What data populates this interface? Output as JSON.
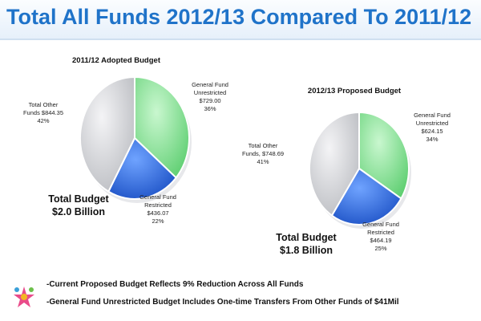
{
  "header": {
    "title": "Total All Funds 2012/13 Compared To 2011/12"
  },
  "colors": {
    "green": "#8ee39a",
    "blue": "#2f6fe3",
    "gray": "#dcdde0",
    "title": "#1f73c9"
  },
  "chart_data": [
    {
      "type": "pie",
      "title": "2011/12 Adopted Budget",
      "total_label_1": "Total Budget",
      "total_label_2": "$2.0 Billion",
      "slices": [
        {
          "name_1": "General Fund",
          "name_2": "Unrestricted",
          "value": 729.0,
          "value_label": "$729.00",
          "percent": 36,
          "percent_label": "36%",
          "color": "#8ee39a"
        },
        {
          "name_1": "General Fund",
          "name_2": "Restricted",
          "value": 436.07,
          "value_label": "$436.07",
          "percent": 22,
          "percent_label": "22%",
          "color": "#2f6fe3"
        },
        {
          "name_1": "Total Other",
          "name_2": "Funds",
          "value": 844.35,
          "value_label": "$844.35",
          "percent": 42,
          "percent_label": "42%",
          "color": "#dcdde0"
        }
      ]
    },
    {
      "type": "pie",
      "title": "2012/13 Proposed Budget",
      "total_label_1": "Total Budget",
      "total_label_2": "$1.8 Billion",
      "slices": [
        {
          "name_1": "General Fund",
          "name_2": "Unrestricted",
          "value": 624.15,
          "value_label": "$624.15",
          "percent": 34,
          "percent_label": "34%",
          "color": "#8ee39a"
        },
        {
          "name_1": "General Fund",
          "name_2": "Restricted",
          "value": 464.19,
          "value_label": "$464.19",
          "percent": 25,
          "percent_label": "25%",
          "color": "#2f6fe3"
        },
        {
          "name_1": "Total Other",
          "name_2": "Funds,",
          "value": 748.69,
          "value_label": "$748.69",
          "percent": 41,
          "percent_label": "41%",
          "color": "#dcdde0"
        }
      ]
    }
  ],
  "notes": [
    "-Current Proposed Budget Reflects 9% Reduction Across All Funds",
    "-General Fund Unrestricted Budget Includes One-time Transfers From Other Funds of $41Mil"
  ]
}
